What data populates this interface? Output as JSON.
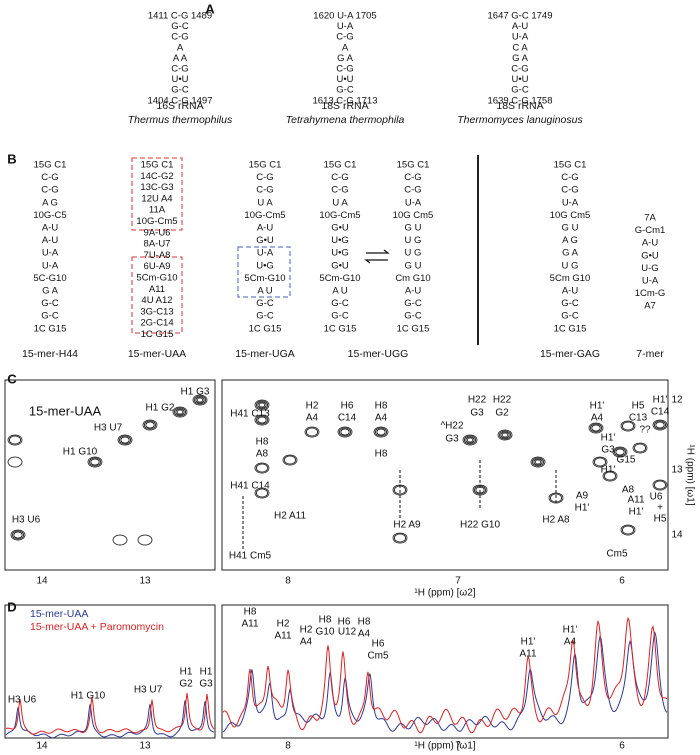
{
  "panel_a": {
    "label": "A",
    "structures": [
      {
        "name": "16S rRNA",
        "organism": "Thermus thermophilus",
        "lines": [
          "1411 C-G 1489",
          "G-C",
          "C-G",
          "A",
          "A  A",
          "C-G",
          "U•U",
          "G-C",
          "1404 C-G 1497"
        ]
      },
      {
        "name": "18S rRNA",
        "organism": "Tetrahymena thermophila",
        "lines": [
          "1620 U-A 1705",
          "U-A",
          "C-G",
          "A",
          "G  A",
          "C-G",
          "U•U",
          "G-C",
          "1613 C-G 1713"
        ]
      },
      {
        "name": "18S rRNA",
        "organism": "Thermomyces lanuginosus",
        "lines": [
          "1647 G-C 1749",
          "A-U",
          "U-A",
          "C  A",
          "G  A",
          "C-G",
          "U•U",
          "G-C",
          "1639 C-G 1758"
        ]
      }
    ]
  },
  "panel_b": {
    "label": "B",
    "structures": [
      {
        "name": "15-mer-H44",
        "lines": [
          "15G  C1",
          "C-G",
          "C-G",
          "A  G",
          "10G-C5",
          "A-U",
          "A-U",
          "U-A",
          "U-A",
          "5C-G10",
          "G  A",
          "G-C",
          "G-C",
          "1C  G15"
        ]
      },
      {
        "name": "15-mer-UAA",
        "lines": [
          "15G  C1",
          "14C-G2",
          "13C-G3",
          "12U  A4",
          "11A",
          "10G-Cm5",
          "9A-U6",
          "8A-U7",
          "7U-A8",
          "6U-A9",
          "5Cm-G10",
          "A11",
          "4U  A12",
          "3G-C13",
          "2G-C14",
          "1C  G15"
        ]
      },
      {
        "name": "15-mer-UGA",
        "lines": [
          "15G  C1",
          "C-G",
          "C-G",
          "U  A",
          "10G-Cm5",
          "A-U",
          "G•U",
          "U-A",
          "U•G",
          "5Cm-G10",
          "A  U",
          "G-C",
          "G-C",
          "1C  G15"
        ]
      },
      {
        "name": "15-mer-UGG",
        "lines": [
          "15G  C1",
          "C-G",
          "C-G",
          "U  A",
          "10G-Cm5",
          "G•U",
          "U•G",
          "U•G",
          "G•U",
          "5Cm-G10",
          "A  U",
          "G-C",
          "G-C",
          "1C  G15"
        ]
      },
      {
        "lines": [
          "15G  C1",
          "C-G",
          "C-G",
          "U-A",
          "10G  Cm5",
          "G  U",
          "U  G",
          "U  G",
          "G  U",
          "Cm  G10",
          "A-U",
          "G-C",
          "G-C",
          "1C  G15"
        ]
      },
      {
        "name": "15-mer-GAG",
        "lines": [
          "15G  C1",
          "C-G",
          "C-G",
          "U-A",
          "10G  Cm5",
          "G  U",
          "A  G",
          "G  A",
          "U  G",
          "5Cm  G10",
          "A-U",
          "G-C",
          "G-C",
          "1C  G15"
        ]
      },
      {
        "name": "7-mer",
        "lines": [
          "7A",
          "G-Cm1",
          "A-U",
          "G•U",
          "U-G",
          "U-A",
          "1Cm-G",
          "A7"
        ]
      }
    ]
  },
  "panel_c": {
    "label": "C",
    "title": "15-mer-UAA",
    "left_peaks": [
      "H1 G3",
      "H1 G2",
      "H3 U7",
      "H1 G10",
      "H3 U6"
    ],
    "right_peaks": [
      "H41 C13",
      "H2",
      "A4",
      "H6",
      "C14",
      "H8",
      "A4",
      "H8",
      "A8",
      "H41 C14",
      "H8",
      "H2 A11",
      "H22",
      "H22",
      "G3",
      "G2",
      "^H22",
      "G3",
      "H41 Cm5",
      "H2 A9",
      "H22 G10",
      "H2 A8",
      "H1'",
      "A4",
      "H5",
      "C13",
      "H1'",
      "C14",
      "H1'",
      "G3",
      "G15",
      "H1'",
      "A8",
      "A9",
      "H1'",
      "A11",
      "H1'",
      "U6",
      "+",
      "H5",
      "Cm5",
      "??",
      "H5 C14"
    ],
    "x_ticks_left": [
      "14",
      "13"
    ],
    "x_ticks_right": [
      "8",
      "7",
      "6"
    ],
    "y_ticks": [
      "12",
      "13",
      "14"
    ],
    "x_label": "¹H (ppm) [ω2]",
    "y_label": "¹H (ppm) [ω1]"
  },
  "panel_d": {
    "label": "D",
    "legend": [
      {
        "name": "15-mer-UAA",
        "color": "#2a3a9c"
      },
      {
        "name": "15-mer-UAA + Paromomycin",
        "color": "#e02020"
      }
    ],
    "left_peaks": [
      "H3 U6",
      "H1 G10",
      "H3 U7",
      "H1",
      "G2",
      "H1",
      "G3"
    ],
    "right_peaks": [
      "H8",
      "A11",
      "H2",
      "A11",
      "H2",
      "A4",
      "H8",
      "G10",
      "U12",
      "H6",
      "H8",
      "A4",
      "H6",
      "Cm5",
      "H1'",
      "A11",
      "H1'",
      "A4"
    ],
    "x_ticks_left": [
      "14",
      "13"
    ],
    "x_ticks_right": [
      "8",
      "7",
      "6"
    ],
    "x_label": "¹H (ppm) [ω1]"
  }
}
